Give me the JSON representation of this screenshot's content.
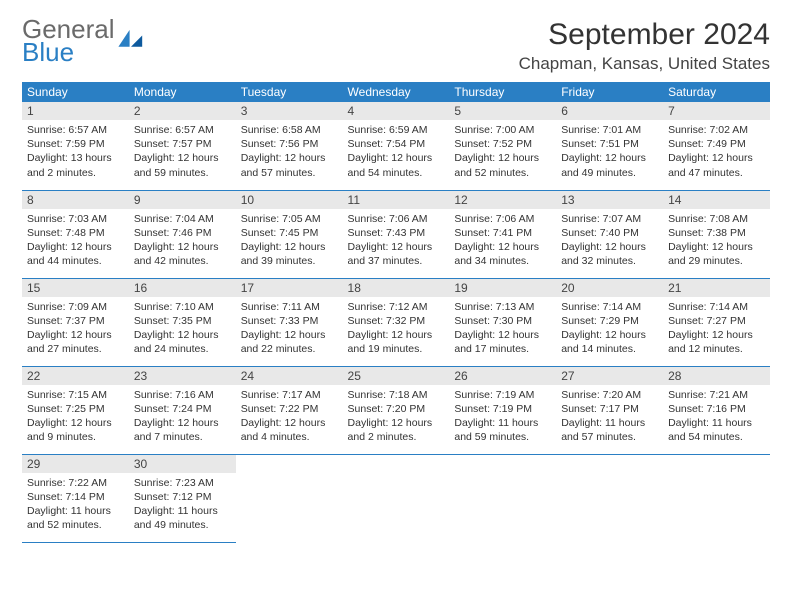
{
  "brand": {
    "top": "General",
    "bottom": "Blue"
  },
  "title": "September 2024",
  "location": "Chapman, Kansas, United States",
  "colors": {
    "header_bg": "#2a7fc4",
    "header_text": "#ffffff",
    "daynum_bg": "#e8e8e8",
    "cell_border": "#2a7fc4",
    "logo_gray": "#6a6a6a",
    "logo_blue": "#2a7fc4",
    "text": "#333333",
    "page_bg": "#ffffff"
  },
  "weekdays": [
    "Sunday",
    "Monday",
    "Tuesday",
    "Wednesday",
    "Thursday",
    "Friday",
    "Saturday"
  ],
  "grid": {
    "rows": 6,
    "cols": 7,
    "start_offset": 0,
    "days_in_month": 30
  },
  "days": [
    {
      "n": 1,
      "sunrise": "6:57 AM",
      "sunset": "7:59 PM",
      "daylight": "13 hours and 2 minutes."
    },
    {
      "n": 2,
      "sunrise": "6:57 AM",
      "sunset": "7:57 PM",
      "daylight": "12 hours and 59 minutes."
    },
    {
      "n": 3,
      "sunrise": "6:58 AM",
      "sunset": "7:56 PM",
      "daylight": "12 hours and 57 minutes."
    },
    {
      "n": 4,
      "sunrise": "6:59 AM",
      "sunset": "7:54 PM",
      "daylight": "12 hours and 54 minutes."
    },
    {
      "n": 5,
      "sunrise": "7:00 AM",
      "sunset": "7:52 PM",
      "daylight": "12 hours and 52 minutes."
    },
    {
      "n": 6,
      "sunrise": "7:01 AM",
      "sunset": "7:51 PM",
      "daylight": "12 hours and 49 minutes."
    },
    {
      "n": 7,
      "sunrise": "7:02 AM",
      "sunset": "7:49 PM",
      "daylight": "12 hours and 47 minutes."
    },
    {
      "n": 8,
      "sunrise": "7:03 AM",
      "sunset": "7:48 PM",
      "daylight": "12 hours and 44 minutes."
    },
    {
      "n": 9,
      "sunrise": "7:04 AM",
      "sunset": "7:46 PM",
      "daylight": "12 hours and 42 minutes."
    },
    {
      "n": 10,
      "sunrise": "7:05 AM",
      "sunset": "7:45 PM",
      "daylight": "12 hours and 39 minutes."
    },
    {
      "n": 11,
      "sunrise": "7:06 AM",
      "sunset": "7:43 PM",
      "daylight": "12 hours and 37 minutes."
    },
    {
      "n": 12,
      "sunrise": "7:06 AM",
      "sunset": "7:41 PM",
      "daylight": "12 hours and 34 minutes."
    },
    {
      "n": 13,
      "sunrise": "7:07 AM",
      "sunset": "7:40 PM",
      "daylight": "12 hours and 32 minutes."
    },
    {
      "n": 14,
      "sunrise": "7:08 AM",
      "sunset": "7:38 PM",
      "daylight": "12 hours and 29 minutes."
    },
    {
      "n": 15,
      "sunrise": "7:09 AM",
      "sunset": "7:37 PM",
      "daylight": "12 hours and 27 minutes."
    },
    {
      "n": 16,
      "sunrise": "7:10 AM",
      "sunset": "7:35 PM",
      "daylight": "12 hours and 24 minutes."
    },
    {
      "n": 17,
      "sunrise": "7:11 AM",
      "sunset": "7:33 PM",
      "daylight": "12 hours and 22 minutes."
    },
    {
      "n": 18,
      "sunrise": "7:12 AM",
      "sunset": "7:32 PM",
      "daylight": "12 hours and 19 minutes."
    },
    {
      "n": 19,
      "sunrise": "7:13 AM",
      "sunset": "7:30 PM",
      "daylight": "12 hours and 17 minutes."
    },
    {
      "n": 20,
      "sunrise": "7:14 AM",
      "sunset": "7:29 PM",
      "daylight": "12 hours and 14 minutes."
    },
    {
      "n": 21,
      "sunrise": "7:14 AM",
      "sunset": "7:27 PM",
      "daylight": "12 hours and 12 minutes."
    },
    {
      "n": 22,
      "sunrise": "7:15 AM",
      "sunset": "7:25 PM",
      "daylight": "12 hours and 9 minutes."
    },
    {
      "n": 23,
      "sunrise": "7:16 AM",
      "sunset": "7:24 PM",
      "daylight": "12 hours and 7 minutes."
    },
    {
      "n": 24,
      "sunrise": "7:17 AM",
      "sunset": "7:22 PM",
      "daylight": "12 hours and 4 minutes."
    },
    {
      "n": 25,
      "sunrise": "7:18 AM",
      "sunset": "7:20 PM",
      "daylight": "12 hours and 2 minutes."
    },
    {
      "n": 26,
      "sunrise": "7:19 AM",
      "sunset": "7:19 PM",
      "daylight": "11 hours and 59 minutes."
    },
    {
      "n": 27,
      "sunrise": "7:20 AM",
      "sunset": "7:17 PM",
      "daylight": "11 hours and 57 minutes."
    },
    {
      "n": 28,
      "sunrise": "7:21 AM",
      "sunset": "7:16 PM",
      "daylight": "11 hours and 54 minutes."
    },
    {
      "n": 29,
      "sunrise": "7:22 AM",
      "sunset": "7:14 PM",
      "daylight": "11 hours and 52 minutes."
    },
    {
      "n": 30,
      "sunrise": "7:23 AM",
      "sunset": "7:12 PM",
      "daylight": "11 hours and 49 minutes."
    }
  ],
  "labels": {
    "sunrise": "Sunrise:",
    "sunset": "Sunset:",
    "daylight": "Daylight:"
  }
}
